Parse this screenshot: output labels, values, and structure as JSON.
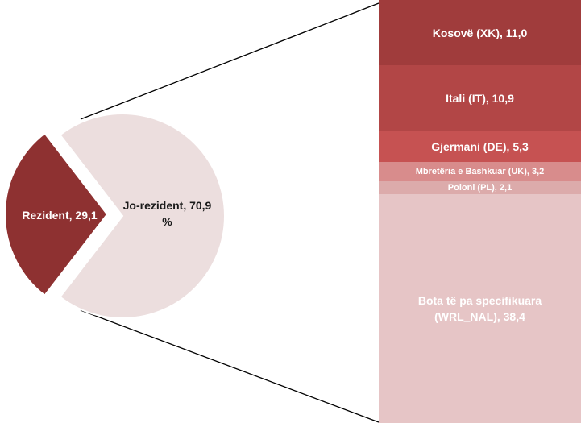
{
  "chart_data": {
    "type": "pie-of-bar",
    "pie": {
      "values": [
        29.1,
        70.9
      ],
      "value_labels": [
        "Rezident, 29,1",
        "Jo-rezident, 70,9 %"
      ],
      "colors": [
        "#8e3131",
        "#ecdede"
      ],
      "label_colors": [
        "#ffffff",
        "#1a1a1a"
      ]
    },
    "bar": {
      "values": [
        11.0,
        10.9,
        5.3,
        3.2,
        2.1,
        38.4
      ],
      "value_labels": [
        "Kosovë (XK), 11,0",
        "Itali (IT), 10,9",
        "Gjermani (DE), 5,3",
        "Mbretëria e Bashkuar (UK), 3,2",
        "Poloni (PL), 2,1",
        "Bota të pa specifikuara (WRL_NAL), 38,4"
      ],
      "colors": [
        "#a03c3c",
        "#b24646",
        "#c65252",
        "#d88c8c",
        "#dcabab",
        "#e6c5c6"
      ]
    }
  }
}
